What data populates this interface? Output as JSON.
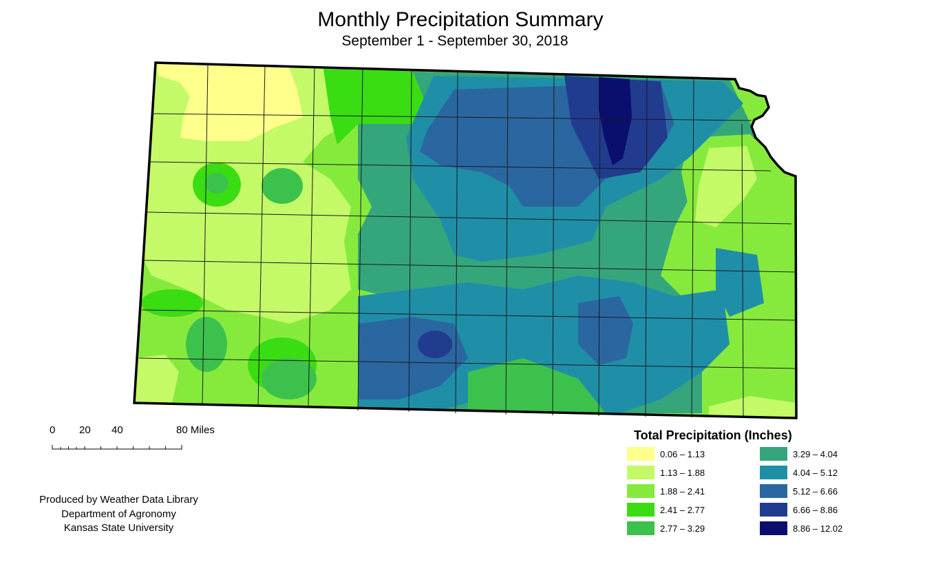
{
  "map": {
    "title": "Monthly Precipitation Summary",
    "subtitle": "September 1 - September 30, 2018"
  },
  "legend": {
    "title": "Total Precipitation (Inches)",
    "classes": [
      {
        "label": "0.06 – 1.13",
        "color": "#ffff8c"
      },
      {
        "label": "1.13 – 1.88",
        "color": "#c4f968"
      },
      {
        "label": "1.88 – 2.41",
        "color": "#86ea3d"
      },
      {
        "label": "2.41 – 2.77",
        "color": "#3adc12"
      },
      {
        "label": "2.77 – 3.29",
        "color": "#3dc14d"
      },
      {
        "label": "3.29 – 4.04",
        "color": "#35a67c"
      },
      {
        "label": "4.04 – 5.12",
        "color": "#1f8fa8"
      },
      {
        "label": "5.12 – 6.66",
        "color": "#2a67a0"
      },
      {
        "label": "6.66 – 8.86",
        "color": "#213c8f"
      },
      {
        "label": "8.86 – 12.02",
        "color": "#0a0f6e"
      }
    ]
  },
  "scale_bar": {
    "ticks": [
      "0",
      "20",
      "40",
      "80 Miles"
    ]
  },
  "credits": {
    "line1": "Produced by Weather Data Library",
    "line2": "Department of Agronomy",
    "line3": "Kansas State University"
  }
}
